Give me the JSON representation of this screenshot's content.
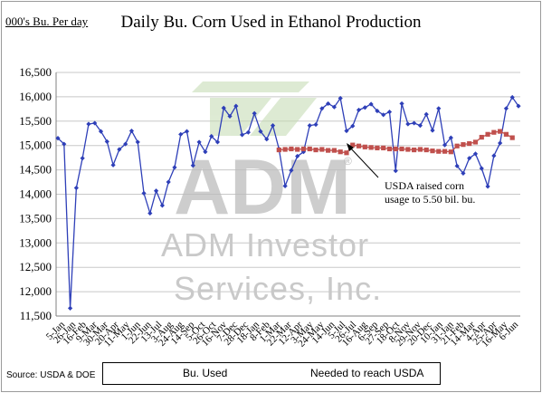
{
  "units_label": "000's Bu. Per day",
  "watermark": {
    "logo_text": "ADM",
    "line1": "ADM Investor",
    "line2": "Services, Inc."
  },
  "source": "Source: USDA & DOE",
  "annotation": {
    "line1": "USDA raised corn",
    "line2": "usage to 5.50 bil. bu."
  },
  "chart_data": {
    "type": "line",
    "title": "Daily Bu. Corn Used in Ethanol Production",
    "xlabel": "",
    "ylabel": "000's Bu. Per day",
    "ylim": [
      11500,
      16500
    ],
    "yticks": [
      11500,
      12000,
      12500,
      13000,
      13500,
      14000,
      14500,
      15000,
      15500,
      16000,
      16500
    ],
    "ytick_labels": [
      "11,500",
      "12,000",
      "12,500",
      "13,000",
      "13,500",
      "14,000",
      "14,500",
      "15,000",
      "15,500",
      "16,000",
      "16,500"
    ],
    "x_tick_labels": [
      "5-Jan",
      "26-Jan",
      "16-Feb",
      "9-Mar",
      "30-Mar",
      "20-Apr",
      "11-May",
      "1-Jun",
      "22-Jun",
      "13-Jul",
      "3-Aug",
      "24-Aug",
      "14-Sep",
      "5-Oct",
      "26-Oct",
      "16-Nov",
      "7-Dec",
      "28-Dec",
      "18-Jan",
      "8-Feb",
      "1-Mar",
      "22-Mar",
      "12-Apr",
      "3-May",
      "24-May",
      "14-Jun",
      "5-Jul",
      "26-Jul",
      "16-Aug",
      "6-Sep",
      "27-Sep",
      "18-Oct",
      "8-Nov",
      "29-Nov",
      "20-Dec",
      "10-Jan",
      "31-Jan",
      "21-Feb",
      "14-Mar",
      "4-Apr",
      "25-Apr",
      "16-May",
      "6-Jun"
    ],
    "grid": true,
    "legend_position": "bottom",
    "series": [
      {
        "name": "Bu. Used",
        "color": "#2e3fb8",
        "marker": "diamond",
        "values": [
          15150,
          15030,
          11660,
          14130,
          14740,
          15440,
          15460,
          15290,
          15080,
          14600,
          14920,
          15030,
          15300,
          15070,
          14020,
          13610,
          14070,
          13770,
          14250,
          14550,
          15230,
          15290,
          14590,
          15070,
          14870,
          15190,
          15070,
          15770,
          15600,
          15810,
          15220,
          15270,
          15660,
          15290,
          15130,
          15410,
          14930,
          14170,
          14490,
          14780,
          14870,
          15410,
          15430,
          15760,
          15860,
          15790,
          15970,
          15300,
          15400,
          15730,
          15780,
          15850,
          15710,
          15630,
          15690,
          14480,
          15860,
          15440,
          15460,
          15410,
          15640,
          15310,
          15760,
          15010,
          15160,
          14580,
          14430,
          14740,
          14830,
          14530,
          14160,
          14790,
          15050,
          15760,
          15990,
          15810
        ],
        "count_note": ""
      },
      {
        "name": "Needed to reach USDA",
        "color": "#c0504d",
        "marker": "square",
        "start_index": 36,
        "values": [
          14910,
          14920,
          14930,
          14920,
          14930,
          14930,
          14910,
          14920,
          14900,
          14900,
          14870,
          14850,
          15010,
          14990,
          14970,
          14960,
          14950,
          14950,
          14930,
          14930,
          14930,
          14920,
          14910,
          14920,
          14910,
          14890,
          14880,
          14880,
          14870,
          14990,
          15020,
          15040,
          15070,
          15170,
          15230,
          15270,
          15290,
          15230,
          15160
        ]
      }
    ]
  }
}
